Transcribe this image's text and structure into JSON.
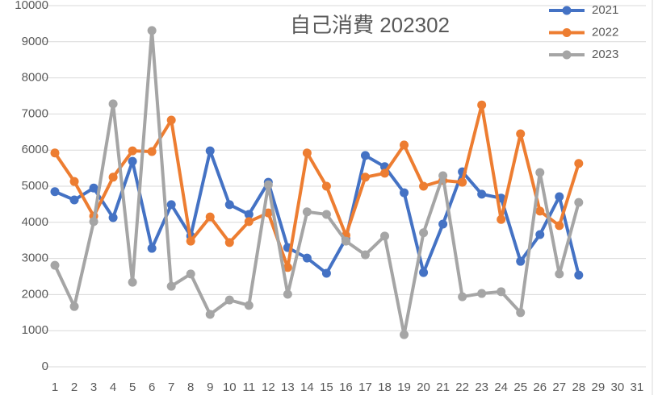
{
  "chart_data": {
    "type": "line",
    "title": "自己消費 202302",
    "categories": [
      "1",
      "2",
      "3",
      "4",
      "5",
      "6",
      "7",
      "8",
      "9",
      "10",
      "11",
      "12",
      "13",
      "14",
      "15",
      "16",
      "17",
      "18",
      "19",
      "20",
      "21",
      "22",
      "23",
      "24",
      "25",
      "26",
      "27",
      "28",
      "29",
      "30",
      "31"
    ],
    "series": [
      {
        "name": "2021",
        "color": "#4472c4",
        "values": [
          4850,
          4620,
          4950,
          4130,
          5690,
          3280,
          4490,
          3620,
          5980,
          4490,
          4220,
          5110,
          3300,
          3010,
          2590,
          3550,
          5850,
          5540,
          4820,
          2610,
          3950,
          5400,
          4780,
          4670,
          2920,
          3660,
          4710,
          2540,
          null,
          null,
          null
        ]
      },
      {
        "name": "2022",
        "color": "#ed7d31",
        "values": [
          5920,
          5130,
          4170,
          5250,
          5980,
          5960,
          6830,
          3480,
          4150,
          3440,
          4020,
          4260,
          2750,
          5920,
          5000,
          3640,
          5250,
          5360,
          6140,
          5000,
          5160,
          5110,
          7250,
          4080,
          6450,
          4310,
          3910,
          5630,
          null,
          null,
          null
        ]
      },
      {
        "name": "2023",
        "color": "#a5a5a5",
        "values": [
          2810,
          1670,
          4020,
          7280,
          2340,
          9310,
          2230,
          2570,
          1450,
          1850,
          1700,
          5040,
          2010,
          4290,
          4220,
          3480,
          3100,
          3620,
          890,
          3710,
          5290,
          1940,
          2030,
          2080,
          1500,
          5380,
          2570,
          4550,
          null,
          null,
          null
        ]
      }
    ],
    "ylim": [
      0,
      10000
    ],
    "yticks": [
      0,
      1000,
      2000,
      3000,
      4000,
      5000,
      6000,
      7000,
      8000,
      9000,
      10000
    ],
    "grid": true,
    "legend": "top-right"
  }
}
